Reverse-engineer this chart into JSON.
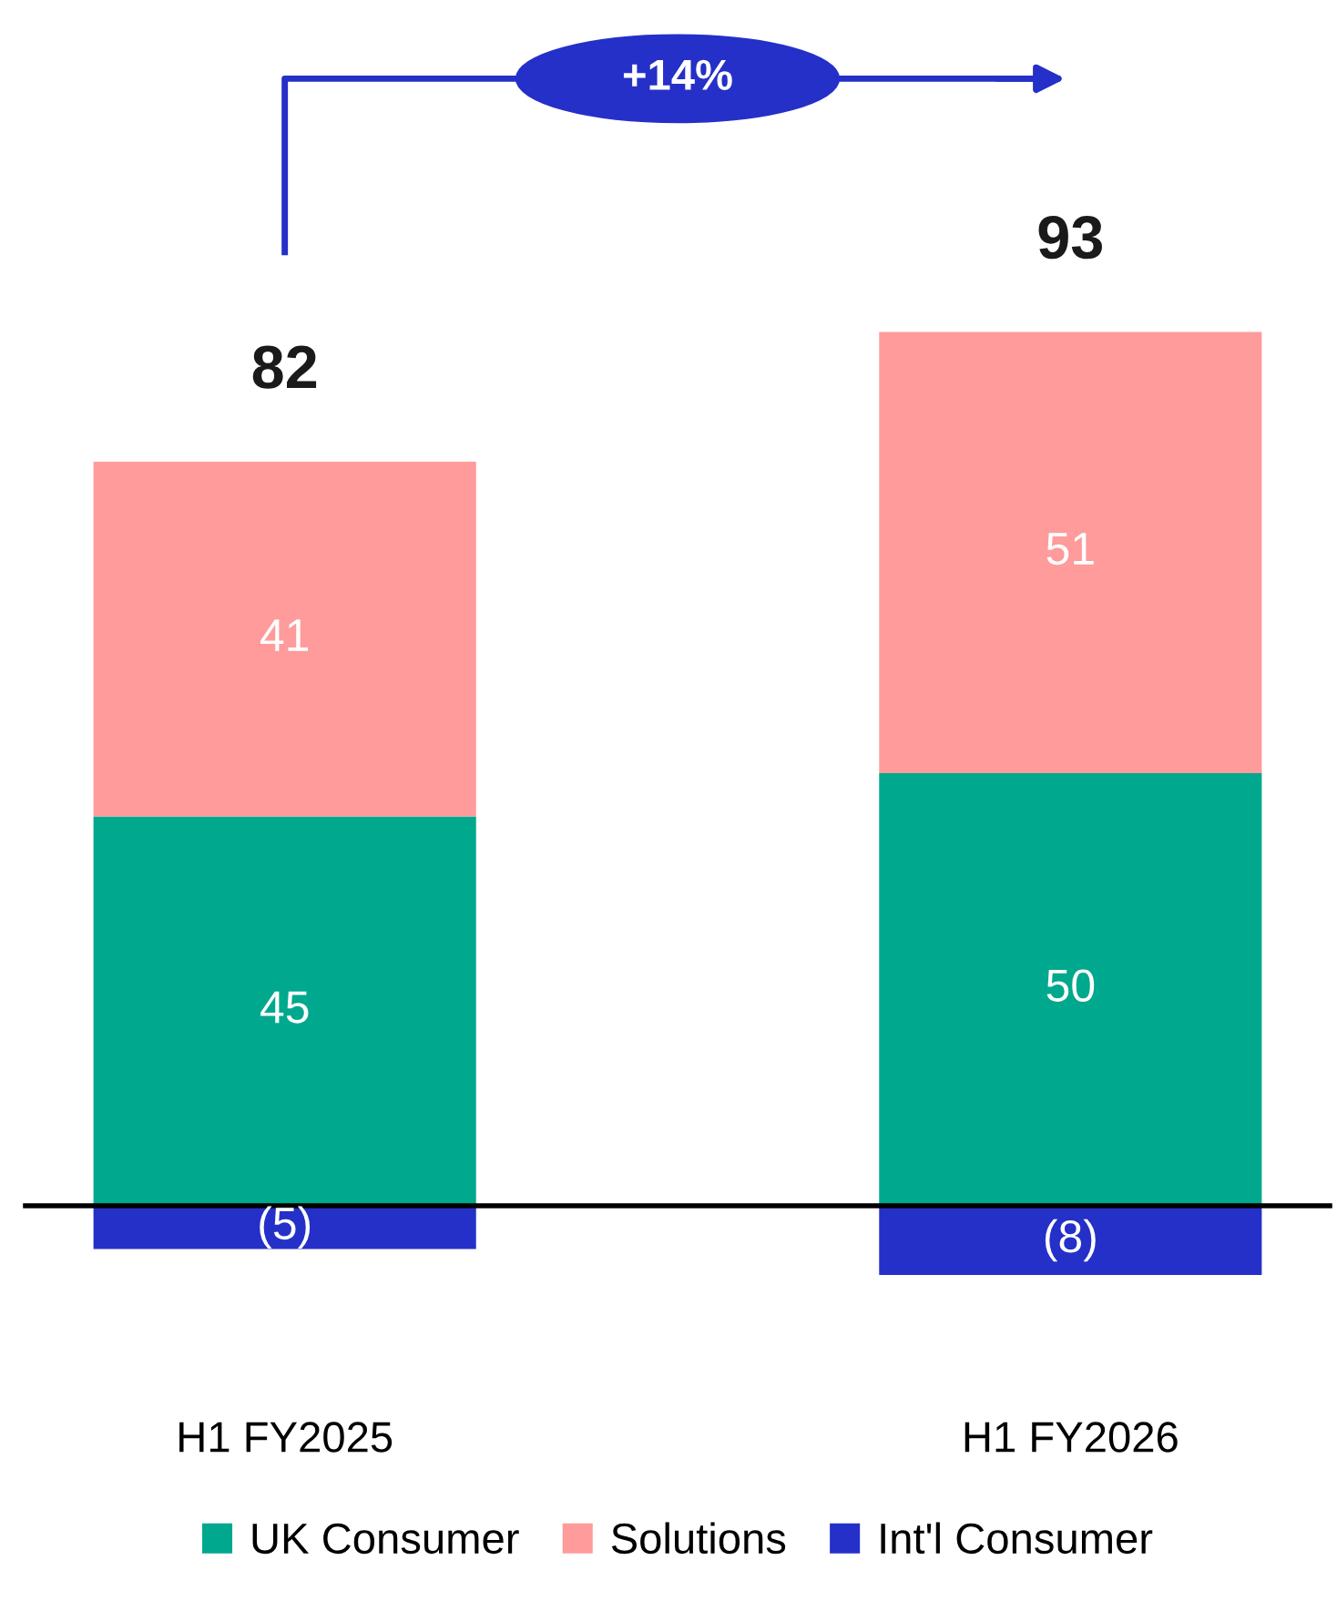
{
  "chart_data": {
    "type": "bar",
    "stacked": true,
    "categories": [
      "H1 FY2025",
      "H1 FY2026"
    ],
    "series": [
      {
        "name": "UK Consumer",
        "color": "#00a88e",
        "values": [
          45,
          50
        ],
        "value_labels": [
          "45",
          "50"
        ]
      },
      {
        "name": "Solutions",
        "color": "#ff9b9b",
        "values": [
          41,
          51
        ],
        "value_labels": [
          "41",
          "51"
        ]
      },
      {
        "name": "Int'l Consumer",
        "color": "#2530c8",
        "values": [
          -5,
          -8
        ],
        "value_labels": [
          "(5)",
          "(8)"
        ]
      }
    ],
    "totals": [
      "82",
      "93"
    ],
    "annotations": [
      "+14%"
    ],
    "legend": "bottom"
  }
}
